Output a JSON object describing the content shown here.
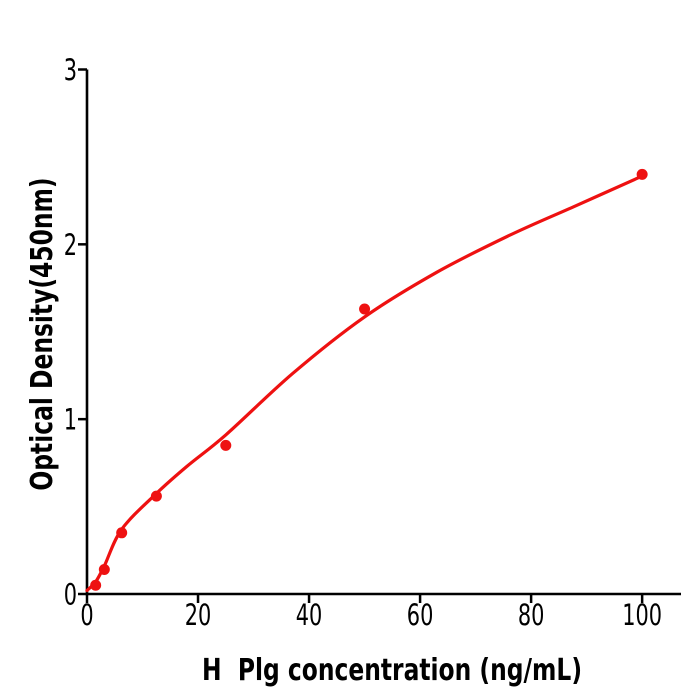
{
  "chart_data": {
    "type": "scatter",
    "title": "",
    "xlabel": "H  Plg concentration (ng/mL)",
    "ylabel": "Optical Density(450nm)",
    "xlim": [
      0,
      107
    ],
    "ylim": [
      0,
      3
    ],
    "xticks": [
      0,
      20,
      40,
      60,
      80,
      100
    ],
    "yticks": [
      0,
      1,
      2,
      3
    ],
    "grid": false,
    "legend": null,
    "background_color": "#ffffff",
    "axis_color": "#000000",
    "point_color": "#ee1111",
    "line_color": "#ee1111",
    "points": [
      {
        "x": 1.56,
        "y": 0.05
      },
      {
        "x": 3.12,
        "y": 0.14
      },
      {
        "x": 6.25,
        "y": 0.35
      },
      {
        "x": 12.5,
        "y": 0.56
      },
      {
        "x": 25,
        "y": 0.85
      },
      {
        "x": 50,
        "y": 1.63
      },
      {
        "x": 100,
        "y": 2.4
      }
    ],
    "fit_curve": [
      [
        0,
        0.02
      ],
      [
        1.56,
        0.07
      ],
      [
        3.12,
        0.16
      ],
      [
        6.25,
        0.37
      ],
      [
        12.5,
        0.575
      ],
      [
        18,
        0.73
      ],
      [
        25,
        0.91
      ],
      [
        37,
        1.26
      ],
      [
        50,
        1.585
      ],
      [
        63,
        1.84
      ],
      [
        76,
        2.05
      ],
      [
        88,
        2.22
      ],
      [
        100,
        2.39
      ]
    ]
  }
}
